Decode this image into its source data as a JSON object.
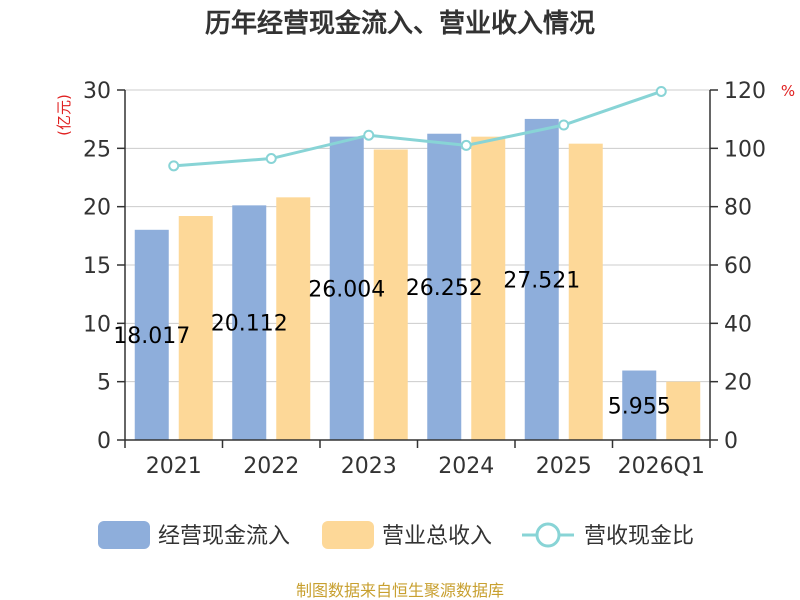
{
  "chart_data": {
    "type": "bar",
    "title": "历年经营现金流入、营业收入情况",
    "categories": [
      "2021",
      "2022",
      "2023",
      "2024",
      "2025",
      "2026Q1"
    ],
    "left_axis": {
      "unit": "(亿元)",
      "ylim": [
        0,
        30
      ],
      "ticks": [
        "0",
        "5",
        "10",
        "15",
        "20",
        "25",
        "30"
      ]
    },
    "right_axis": {
      "unit": "%",
      "ylim": [
        0,
        120
      ],
      "ticks": [
        "0",
        "20",
        "40",
        "60",
        "80",
        "100",
        "120"
      ]
    },
    "grid": true,
    "legend_position": "bottom",
    "series": [
      {
        "name": "经营现金流入",
        "type": "bar",
        "axis": "left",
        "color": "#8eaedb",
        "values": [
          18.017,
          20.112,
          26.004,
          26.252,
          27.521,
          5.955
        ],
        "labels": [
          "18.017",
          "20.112",
          "26.004",
          "26.252",
          "27.521",
          "5.955"
        ]
      },
      {
        "name": "营业总收入",
        "type": "bar",
        "axis": "left",
        "color": "#fdd898",
        "values": [
          19.2,
          20.8,
          24.9,
          26.0,
          25.4,
          5.0
        ]
      },
      {
        "name": "营收现金比",
        "type": "line",
        "axis": "right",
        "color": "#88d4d6",
        "values": [
          94,
          96.5,
          104.5,
          101,
          108,
          119.5
        ]
      }
    ]
  },
  "source_text": "制图数据来自恒生聚源数据库"
}
